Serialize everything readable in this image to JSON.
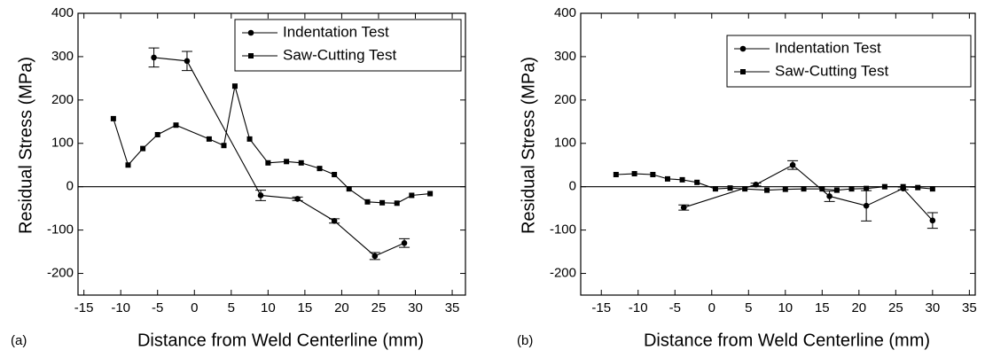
{
  "chart_data": [
    {
      "type": "line",
      "panel_label": "(a)",
      "xlabel": "Distance from Weld Centerline (mm)",
      "ylabel": "Residual Stress (MPa)",
      "xlim": [
        -15.8,
        36.8
      ],
      "xticks": [
        -15,
        -10,
        -5,
        0,
        5,
        10,
        15,
        20,
        25,
        30,
        35
      ],
      "ylim": [
        -250,
        400
      ],
      "yticks": [
        -200,
        -100,
        0,
        100,
        200,
        300,
        400
      ],
      "legend": "upper right",
      "series": [
        {
          "name": "Indentation Test",
          "marker": "circle",
          "color": "#000000",
          "x": [
            -5.5,
            -1,
            9,
            14,
            19,
            24.5,
            28.5
          ],
          "values": [
            298,
            290,
            -20,
            -28,
            -79,
            -160,
            -130
          ],
          "errors": [
            22,
            22,
            12,
            4,
            5,
            8,
            10
          ]
        },
        {
          "name": "Saw-Cutting Test",
          "marker": "square",
          "color": "#000000",
          "x": [
            -11,
            -9,
            -7,
            -5,
            -2.5,
            2,
            4,
            5.5,
            7.5,
            10,
            12.5,
            14.5,
            17,
            19,
            21,
            23.5,
            25.5,
            27.5,
            29.5,
            32
          ],
          "values": [
            157,
            50,
            88,
            120,
            142,
            110,
            95,
            232,
            110,
            55,
            58,
            55,
            42,
            28,
            -5,
            -35,
            -37,
            -38,
            -20,
            -16
          ]
        }
      ]
    },
    {
      "type": "line",
      "panel_label": "(b)",
      "xlabel": "Distance from Weld Centerline (mm)",
      "ylabel": "Residual Stress (MPa)",
      "xlim": [
        -17.8,
        35.8
      ],
      "xticks": [
        -15,
        -10,
        -5,
        0,
        5,
        10,
        15,
        20,
        25,
        30,
        35
      ],
      "ylim": [
        -250,
        400
      ],
      "yticks": [
        -200,
        -100,
        0,
        100,
        200,
        300,
        400
      ],
      "legend": "upper right",
      "series": [
        {
          "name": "Indentation Test",
          "marker": "circle",
          "color": "#000000",
          "x": [
            -3.8,
            6,
            11,
            16,
            21,
            26,
            30
          ],
          "values": [
            -48,
            5,
            50,
            -22,
            -44,
            -4,
            -78
          ],
          "errors": [
            6,
            3,
            10,
            12,
            35,
            3,
            18
          ]
        },
        {
          "name": "Saw-Cutting Test",
          "marker": "square",
          "color": "#000000",
          "x": [
            -13,
            -10.5,
            -8,
            -6,
            -4,
            -2,
            0.5,
            2.5,
            4.5,
            7.5,
            10,
            12.5,
            15,
            17,
            19,
            21,
            23.5,
            26,
            28,
            30
          ],
          "values": [
            28,
            30,
            28,
            18,
            16,
            10,
            -5,
            -3,
            -5,
            -8,
            -6,
            -5,
            -5,
            -8,
            -5,
            -4,
            0,
            0,
            -2,
            -5
          ]
        }
      ]
    }
  ]
}
